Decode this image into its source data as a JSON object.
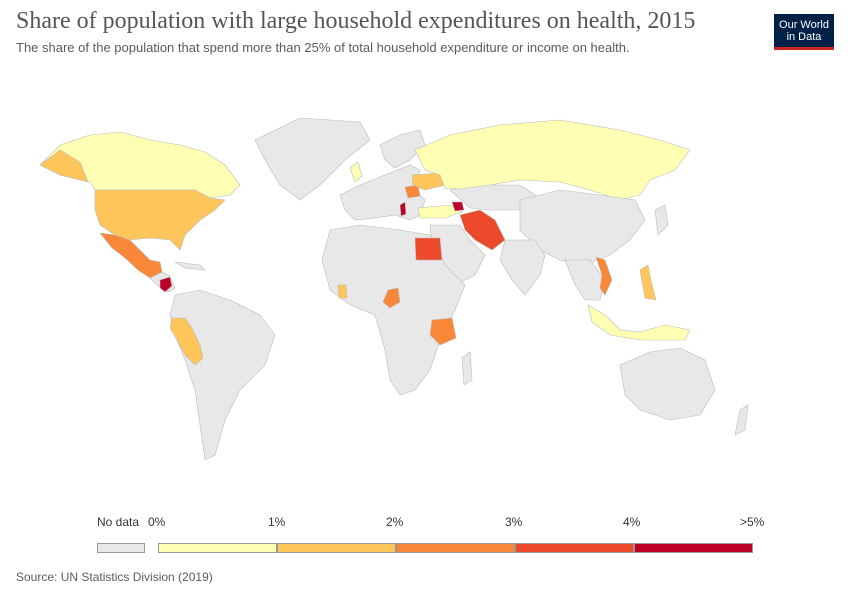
{
  "title": "Share of population with large household expenditures on health, 2015",
  "subtitle": "The share of the population that spend more than 25% of total household expenditure or income on health.",
  "logo": {
    "line1": "Our World",
    "line2": "in Data"
  },
  "source": "Source: UN Statistics Division (2019)",
  "legend": {
    "no_data_label": "No data",
    "no_data_color": "#e8e8e8",
    "ticks": [
      "0%",
      "1%",
      "2%",
      "3%",
      "4%",
      ">5%"
    ],
    "bins": [
      {
        "range": "0–1%",
        "color": "#ffffb3"
      },
      {
        "range": "1–2%",
        "color": "#fec55a"
      },
      {
        "range": "2–3%",
        "color": "#f9873a"
      },
      {
        "range": "3–4%",
        "color": "#ec4a2b"
      },
      {
        "range": ">4%",
        "color": "#bd0026"
      }
    ]
  },
  "map": {
    "land_no_data_color": "#e8e8e8",
    "border_color": "#bbbbbb",
    "regions": [
      {
        "name": "Canada",
        "bin": 0
      },
      {
        "name": "United States",
        "bin": 0
      },
      {
        "name": "Mexico",
        "bin": 1
      },
      {
        "name": "Nicaragua",
        "bin": 4
      },
      {
        "name": "Peru",
        "bin": 1
      },
      {
        "name": "Russia",
        "bin": 0
      },
      {
        "name": "Turkey",
        "bin": 0
      },
      {
        "name": "Iran",
        "bin": 3
      },
      {
        "name": "Egypt",
        "bin": 3
      },
      {
        "name": "Armenia",
        "bin": 4
      },
      {
        "name": "Vietnam",
        "bin": 2
      },
      {
        "name": "Philippines",
        "bin": 1
      },
      {
        "name": "Indonesia",
        "bin": 0
      },
      {
        "name": "Tanzania",
        "bin": 2
      },
      {
        "name": "Cameroon",
        "bin": 2
      },
      {
        "name": "Ghana",
        "bin": 1
      },
      {
        "name": "Romania",
        "bin": 2
      },
      {
        "name": "Ukraine",
        "bin": 1
      }
    ]
  }
}
